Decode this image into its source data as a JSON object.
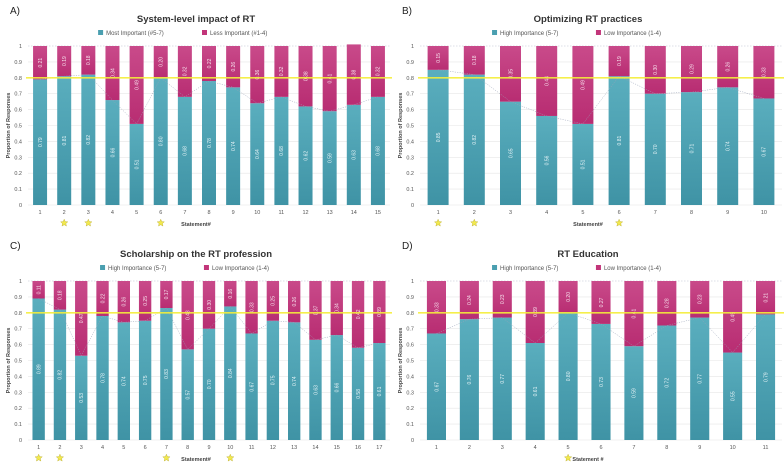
{
  "chart_data": [
    {
      "panel_label": "A)",
      "type": "bar",
      "stacked": true,
      "title": "System-level impact of RT",
      "xlabel": "Statement#",
      "ylabel": "Proportion of Responses",
      "ylim": [
        0,
        1
      ],
      "yticks": [
        "0",
        "0.1",
        "0.2",
        "0.3",
        "0.4",
        "0.5",
        "0.6",
        "0.7",
        "0.8",
        "0.9",
        "1"
      ],
      "threshold": 0.8,
      "categories": [
        "1",
        "2",
        "3",
        "4",
        "5",
        "6",
        "7",
        "8",
        "9",
        "10",
        "11",
        "12",
        "13",
        "14",
        "15"
      ],
      "series": [
        {
          "name": "Most Important (#5-7)",
          "color": "#4a9fb0",
          "values": [
            0.79,
            0.81,
            0.82,
            0.66,
            0.51,
            0.8,
            0.68,
            0.78,
            0.74,
            0.64,
            0.68,
            0.62,
            0.59,
            0.63,
            0.68
          ]
        },
        {
          "name": "Less Important (#1-4)",
          "color": "#c2357a",
          "values": [
            0.21,
            0.19,
            0.18,
            0.34,
            0.49,
            0.2,
            0.32,
            0.22,
            0.26,
            0.36,
            0.32,
            0.38,
            0.41,
            0.38,
            0.32
          ]
        }
      ],
      "starred": [
        "2",
        "3",
        "6"
      ]
    },
    {
      "panel_label": "B)",
      "type": "bar",
      "stacked": true,
      "title": "Optimizing RT practices",
      "xlabel": "Statement#",
      "ylabel": "Proportion of Responses",
      "ylim": [
        0,
        1
      ],
      "yticks": [
        "0",
        "0.1",
        "0.2",
        "0.3",
        "0.4",
        "0.5",
        "0.6",
        "0.7",
        "0.8",
        "0.9",
        "1"
      ],
      "threshold": 0.8,
      "categories": [
        "1",
        "2",
        "3",
        "4",
        "5",
        "6",
        "7",
        "8",
        "9",
        "10"
      ],
      "series": [
        {
          "name": "High Importance (5-7)",
          "color": "#4a9fb0",
          "values": [
            0.85,
            0.82,
            0.65,
            0.56,
            0.51,
            0.81,
            0.7,
            0.71,
            0.74,
            0.67
          ]
        },
        {
          "name": "Low Importance (1-4)",
          "color": "#c2357a",
          "values": [
            0.15,
            0.18,
            0.35,
            0.44,
            0.49,
            0.19,
            0.3,
            0.29,
            0.26,
            0.33
          ]
        }
      ],
      "starred": [
        "1",
        "2",
        "6"
      ]
    },
    {
      "panel_label": "C)",
      "type": "bar",
      "stacked": true,
      "title": "Scholarship on the RT profession",
      "xlabel": "Statement#",
      "ylabel": "Proportion of Responses",
      "ylim": [
        0,
        1
      ],
      "yticks": [
        "0",
        "0.1",
        "0.2",
        "0.3",
        "0.4",
        "0.5",
        "0.6",
        "0.7",
        "0.8",
        "0.9",
        "1"
      ],
      "threshold": 0.8,
      "categories": [
        "1",
        "2",
        "3",
        "4",
        "5",
        "6",
        "7",
        "8",
        "9",
        "10",
        "11",
        "12",
        "13",
        "14",
        "15",
        "16",
        "17"
      ],
      "series": [
        {
          "name": "High Importance (5-7)",
          "color": "#4a9fb0",
          "values": [
            0.89,
            0.82,
            0.53,
            0.78,
            0.74,
            0.75,
            0.83,
            0.57,
            0.7,
            0.84,
            0.67,
            0.75,
            0.74,
            0.63,
            0.66,
            0.58,
            0.61
          ]
        },
        {
          "name": "Low Importance (1-4)",
          "color": "#c2357a",
          "values": [
            0.11,
            0.18,
            0.47,
            0.22,
            0.26,
            0.25,
            0.17,
            0.43,
            0.3,
            0.16,
            0.33,
            0.25,
            0.26,
            0.37,
            0.34,
            0.42,
            0.39
          ]
        }
      ],
      "starred": [
        "1",
        "2",
        "7",
        "10"
      ]
    },
    {
      "panel_label": "D)",
      "type": "bar",
      "stacked": true,
      "title": "RT Education",
      "xlabel": "Statement #",
      "ylabel": "Proportion of Responses",
      "ylim": [
        0,
        1
      ],
      "yticks": [
        "0",
        "0.1",
        "0.2",
        "0.3",
        "0.4",
        "0.5",
        "0.6",
        "0.7",
        "0.8",
        "0.9",
        "1"
      ],
      "threshold": 0.8,
      "categories": [
        "1",
        "2",
        "3",
        "4",
        "5",
        "6",
        "7",
        "8",
        "9",
        "10",
        "11"
      ],
      "series": [
        {
          "name": "High Importance (5-7)",
          "color": "#4a9fb0",
          "values": [
            0.67,
            0.76,
            0.77,
            0.61,
            0.8,
            0.73,
            0.59,
            0.72,
            0.77,
            0.55,
            0.79
          ]
        },
        {
          "name": "Low Importance (1-4)",
          "color": "#c2357a",
          "values": [
            0.33,
            0.24,
            0.23,
            0.39,
            0.2,
            0.27,
            0.41,
            0.28,
            0.23,
            0.45,
            0.21
          ]
        }
      ],
      "starred": [
        "5"
      ]
    }
  ],
  "colors": {
    "threshold_line": "#f5ef3a",
    "star": "#f2e94e",
    "grid": "#e6e6e6",
    "trend_line": "#9aa3b8"
  }
}
